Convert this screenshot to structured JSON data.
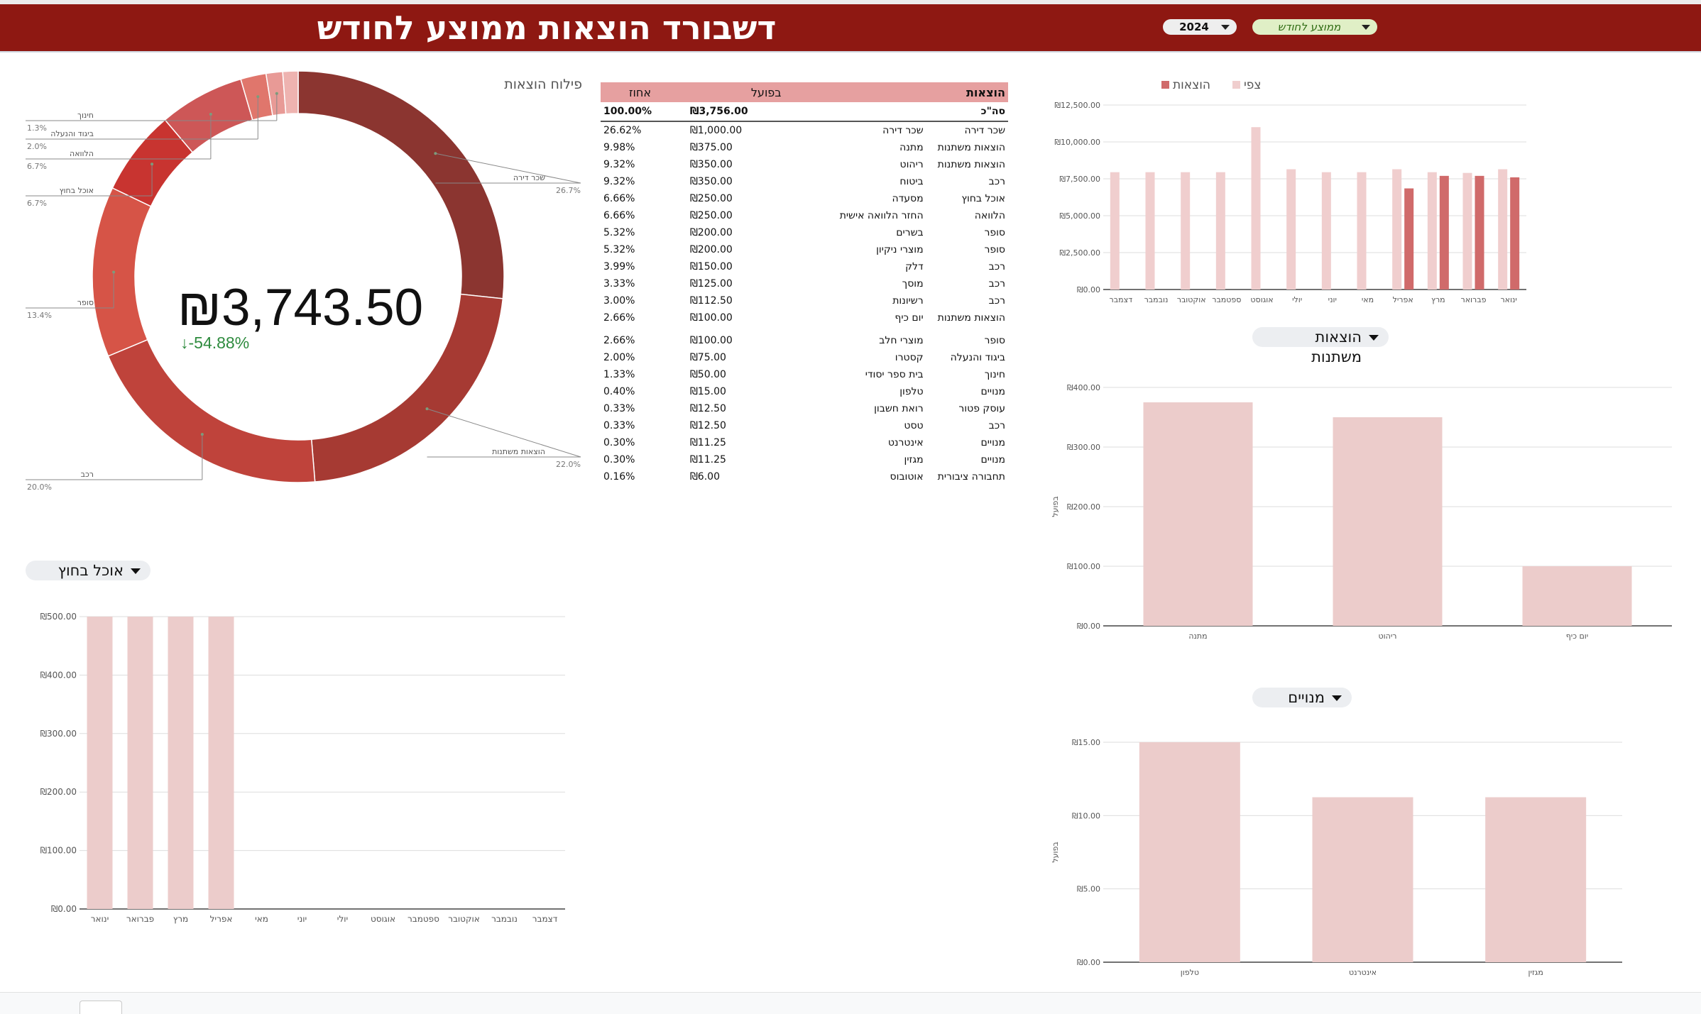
{
  "header": {
    "title": "דשבורד הוצאות ממוצע לחודש",
    "year_value": "2024",
    "mode_value": "ממוצע לחודש"
  },
  "colors": {
    "header_bg": "#8e1812",
    "expenses_bar": "#d06a6a",
    "expected_bar": "#f0cece",
    "light_bar": "#eccccb",
    "positive_delta": "#2e8b3e"
  },
  "donut": {
    "title": "פילוח הוצאות",
    "center_value": "₪3,743.50",
    "center_delta": "-54.88%",
    "delta_icon": "arrow-down-icon",
    "slices": [
      {
        "label": "שכר דירה",
        "pct_text": "26.7%",
        "value": 26.7,
        "color": "#8b3530"
      },
      {
        "label": "הוצאות משתנות",
        "pct_text": "22.0%",
        "value": 22.0,
        "color": "#a63a33"
      },
      {
        "label": "רכב",
        "pct_text": "20.0%",
        "value": 20.0,
        "color": "#bf433b"
      },
      {
        "label": "סופר",
        "pct_text": "13.4%",
        "value": 13.4,
        "color": "#d65447"
      },
      {
        "label": "אוכל בחוץ",
        "pct_text": "6.7%",
        "value": 6.7,
        "color": "#c83430"
      },
      {
        "label": "הלוואה",
        "pct_text": "6.7%",
        "value": 6.7,
        "color": "#cd5757"
      },
      {
        "label": "ביגוד והנעלה",
        "pct_text": "2.0%",
        "value": 2.0,
        "color": "#e0766c"
      },
      {
        "label": "חינוך",
        "pct_text": "1.3%",
        "value": 1.3,
        "color": "#e89a96"
      },
      {
        "label": "",
        "pct_text": "",
        "value": 1.2,
        "color": "#eeb3b0"
      }
    ]
  },
  "table": {
    "headers": {
      "category": "הוצאות",
      "actual": "בפועל",
      "percent": "אחוז"
    },
    "total": {
      "category": "סה\"כ",
      "actual": "₪3,756.00",
      "percent": "100.00%"
    },
    "rows": [
      {
        "category": "שכר דירה",
        "item": "שכר דירה",
        "actual": "₪1,000.00",
        "percent": "26.62%"
      },
      {
        "category": "הוצאות משתנות",
        "item": "מתנה",
        "actual": "₪375.00",
        "percent": "9.98%"
      },
      {
        "category": "הוצאות משתנות",
        "item": "ריהוט",
        "actual": "₪350.00",
        "percent": "9.32%"
      },
      {
        "category": "רכב",
        "item": "ביטוח",
        "actual": "₪350.00",
        "percent": "9.32%"
      },
      {
        "category": "אוכל בחוץ",
        "item": "מסעדה",
        "actual": "₪250.00",
        "percent": "6.66%"
      },
      {
        "category": "הלוואה",
        "item": "החזר הלוואה אישית",
        "actual": "₪250.00",
        "percent": "6.66%"
      },
      {
        "category": "סופר",
        "item": "בשרים",
        "actual": "₪200.00",
        "percent": "5.32%"
      },
      {
        "category": "סופר",
        "item": "מוצרי ניקיון",
        "actual": "₪200.00",
        "percent": "5.32%"
      },
      {
        "category": "רכב",
        "item": "דלק",
        "actual": "₪150.00",
        "percent": "3.99%"
      },
      {
        "category": "רכב",
        "item": "מוסך",
        "actual": "₪125.00",
        "percent": "3.33%"
      },
      {
        "category": "רכב",
        "item": "רשיונות",
        "actual": "₪112.50",
        "percent": "3.00%"
      },
      {
        "category": "הוצאות משתנות",
        "item": "יום כיף",
        "actual": "₪100.00",
        "percent": "2.66%"
      },
      {
        "category": "סופר",
        "item": "מוצרי חלב",
        "actual": "₪100.00",
        "percent": "2.66%"
      },
      {
        "category": "ביגוד והנעלה",
        "item": "קסטרו",
        "actual": "₪75.00",
        "percent": "2.00%"
      },
      {
        "category": "חינוך",
        "item": "בית ספר יסודי",
        "actual": "₪50.00",
        "percent": "1.33%"
      },
      {
        "category": "מנויים",
        "item": "טלפון",
        "actual": "₪15.00",
        "percent": "0.40%"
      },
      {
        "category": "עוסק פטור",
        "item": "רואת חשבון",
        "actual": "₪12.50",
        "percent": "0.33%"
      },
      {
        "category": "רכב",
        "item": "טסט",
        "actual": "₪12.50",
        "percent": "0.33%"
      },
      {
        "category": "מנויים",
        "item": "אינטרנט",
        "actual": "₪11.25",
        "percent": "0.30%"
      },
      {
        "category": "מנויים",
        "item": "מגזין",
        "actual": "₪11.25",
        "percent": "0.30%"
      },
      {
        "category": "תחבורה ציבורית",
        "item": "אוטובוס",
        "actual": "₪6.00",
        "percent": "0.16%"
      }
    ]
  },
  "widgets": {
    "eating_out_label": "אוכל בחוץ",
    "variable_label": "הוצאות משתנות",
    "subscriptions_label": "מנויים"
  },
  "chart_data": [
    {
      "type": "bar",
      "title": "",
      "legend": [
        "הוצאות",
        "צפי"
      ],
      "legend_position": "top",
      "categories": [
        "ינואר",
        "פברואר",
        "מרץ",
        "אפריל",
        "מאי",
        "יוני",
        "יולי",
        "אוגוסט",
        "ספטמבר",
        "אוקטובר",
        "נובמבר",
        "דצמבר"
      ],
      "series": [
        {
          "name": "הוצאות",
          "values": [
            7600,
            7700,
            7700,
            6850,
            0,
            0,
            0,
            0,
            0,
            0,
            0,
            0
          ]
        },
        {
          "name": "צפי",
          "values": [
            8150,
            7900,
            7950,
            8150,
            7950,
            7950,
            8150,
            11000,
            7950,
            7950,
            7950,
            7950
          ]
        }
      ],
      "yticks": [
        "₪0.00",
        "₪2,500.00",
        "₪5,000.00",
        "₪7,500.00",
        "₪10,000.00",
        "₪12,500.00"
      ],
      "ylim": [
        0,
        12500
      ],
      "grid": true,
      "x_direction": "right-to-left"
    },
    {
      "type": "bar",
      "title": "",
      "categories": [
        "מתנה",
        "ריהוט",
        "יום כיף"
      ],
      "series": [
        {
          "values": [
            375,
            350,
            100
          ]
        }
      ],
      "ylabel": "בפועל",
      "yticks": [
        "₪0.00",
        "₪100.00",
        "₪200.00",
        "₪300.00",
        "₪400.00"
      ],
      "ylim": [
        0,
        400
      ],
      "grid": true
    },
    {
      "type": "bar",
      "title": "",
      "categories": [
        "טלפון",
        "אינטרנט",
        "מגזין"
      ],
      "series": [
        {
          "values": [
            15,
            11.25,
            11.25
          ]
        }
      ],
      "ylabel": "בפועל",
      "yticks": [
        "₪0.00",
        "₪5.00",
        "₪10.00",
        "₪15.00"
      ],
      "ylim": [
        0,
        15
      ],
      "grid": true
    },
    {
      "type": "bar",
      "title": "",
      "categories": [
        "ינואר",
        "פברואר",
        "מרץ",
        "אפריל",
        "מאי",
        "יוני",
        "יולי",
        "אוגוסט",
        "ספטמבר",
        "אוקטובר",
        "נובמבר",
        "דצמבר"
      ],
      "series": [
        {
          "values": [
            500,
            500,
            500,
            500,
            0,
            0,
            0,
            0,
            0,
            0,
            0,
            0
          ]
        }
      ],
      "yticks": [
        "₪0.00",
        "₪100.00",
        "₪200.00",
        "₪300.00",
        "₪400.00",
        "₪500.00"
      ],
      "ylim": [
        0,
        500
      ],
      "grid": true
    }
  ]
}
